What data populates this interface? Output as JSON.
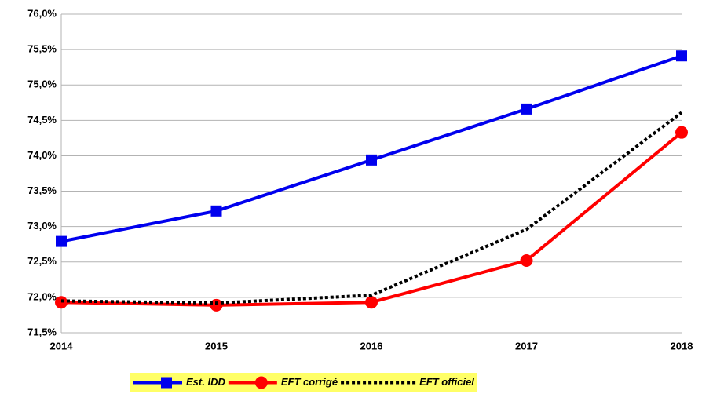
{
  "chart_data": {
    "type": "line",
    "categories": [
      "2014",
      "2015",
      "2016",
      "2017",
      "2018"
    ],
    "series": [
      {
        "name": "Est. IDD",
        "color": "#0000ee",
        "marker": "square",
        "dash": "solid",
        "values": [
          72.79,
          73.22,
          73.94,
          74.66,
          75.41
        ]
      },
      {
        "name": "EFT corrigé",
        "color": "#ff0000",
        "marker": "circle",
        "dash": "solid",
        "values": [
          71.93,
          71.89,
          71.93,
          72.52,
          74.33
        ]
      },
      {
        "name": "EFT officiel",
        "color": "#000000",
        "marker": "none",
        "dash": "dotted",
        "values": [
          71.95,
          71.92,
          72.03,
          72.96,
          74.61
        ]
      }
    ],
    "ylim": [
      71.5,
      76.0
    ],
    "yticks": [
      {
        "value": 71.5,
        "label": "71,5%"
      },
      {
        "value": 72.0,
        "label": "72,0%"
      },
      {
        "value": 72.5,
        "label": "72,5%"
      },
      {
        "value": 73.0,
        "label": "73,0%"
      },
      {
        "value": 73.5,
        "label": "73,5%"
      },
      {
        "value": 74.0,
        "label": "74,0%"
      },
      {
        "value": 74.5,
        "label": "74,5%"
      },
      {
        "value": 75.0,
        "label": "75,0%"
      },
      {
        "value": 75.5,
        "label": "75,5%"
      },
      {
        "value": 76.0,
        "label": "76,0%"
      }
    ],
    "grid": true,
    "legend": "bottom",
    "legend_background": "#ffff66"
  }
}
